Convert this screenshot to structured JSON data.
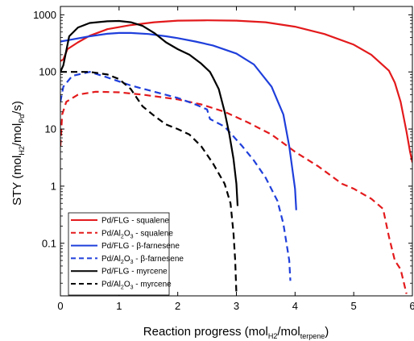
{
  "chart_data": {
    "type": "line",
    "title": "",
    "xlabel": {
      "main": "Reaction progress (mol",
      "sub1": "H2",
      "mid": "/mol",
      "sub2": "terpene",
      "end": ")"
    },
    "ylabel": {
      "main": "STY (mol",
      "sub1": "H2",
      "mid": "/mol",
      "sub2": "Pd",
      "end": "/s)"
    },
    "x_scale": "linear",
    "y_scale": "log",
    "xlim": [
      0,
      6
    ],
    "ylim": [
      0.012,
      1400
    ],
    "x_ticks": [
      0,
      1,
      2,
      3,
      4,
      5,
      6
    ],
    "x_tick_labels": [
      "0",
      "1",
      "2",
      "3",
      "4",
      "5",
      "6"
    ],
    "y_ticks": [
      0.1,
      1,
      10,
      100,
      1000
    ],
    "y_tick_labels": [
      "0.1",
      "1",
      "10",
      "100",
      "1000"
    ],
    "grid": false,
    "legend_position": "bottom-left",
    "series": [
      {
        "name": "Pd/FLG - squalene",
        "color": "#e31a1c",
        "dash": "solid",
        "points": [
          [
            0,
            155
          ],
          [
            0.05,
            165
          ],
          [
            0.12,
            250
          ],
          [
            0.3,
            330
          ],
          [
            0.5,
            430
          ],
          [
            0.8,
            560
          ],
          [
            1.2,
            660
          ],
          [
            1.6,
            740
          ],
          [
            2.0,
            790
          ],
          [
            2.5,
            800
          ],
          [
            3.0,
            790
          ],
          [
            3.5,
            740
          ],
          [
            4.0,
            620
          ],
          [
            4.5,
            460
          ],
          [
            5.0,
            300
          ],
          [
            5.3,
            200
          ],
          [
            5.5,
            130
          ],
          [
            5.6,
            105
          ],
          [
            5.7,
            65
          ],
          [
            5.8,
            30
          ],
          [
            5.9,
            9
          ],
          [
            5.96,
            4
          ],
          [
            6.0,
            2.6
          ]
        ]
      },
      {
        "name": "Pd/Al2O3 - squalene",
        "color": "#e31a1c",
        "dash": "dashed",
        "points": [
          [
            0,
            5
          ],
          [
            0.03,
            18
          ],
          [
            0.1,
            30
          ],
          [
            0.3,
            40
          ],
          [
            0.6,
            45
          ],
          [
            1.0,
            44
          ],
          [
            1.4,
            40
          ],
          [
            2.0,
            33
          ],
          [
            2.4,
            27
          ],
          [
            2.8,
            20
          ],
          [
            3.2,
            13
          ],
          [
            3.6,
            8
          ],
          [
            4.0,
            4
          ],
          [
            4.4,
            2.2
          ],
          [
            4.8,
            1.1
          ],
          [
            5.0,
            0.9
          ],
          [
            5.3,
            0.6
          ],
          [
            5.5,
            0.4
          ],
          [
            5.6,
            0.13
          ],
          [
            5.7,
            0.05
          ],
          [
            5.8,
            0.035
          ],
          [
            5.9,
            0.013
          ]
        ]
      },
      {
        "name": "Pd/FLG - β-farnesene",
        "color": "#1f3fdb",
        "dash": "solid",
        "points": [
          [
            0,
            340
          ],
          [
            0.2,
            370
          ],
          [
            0.5,
            420
          ],
          [
            0.8,
            465
          ],
          [
            1.0,
            480
          ],
          [
            1.2,
            480
          ],
          [
            1.5,
            460
          ],
          [
            1.8,
            420
          ],
          [
            2.0,
            390
          ],
          [
            2.3,
            340
          ],
          [
            2.6,
            290
          ],
          [
            3.0,
            210
          ],
          [
            3.3,
            135
          ],
          [
            3.6,
            55
          ],
          [
            3.8,
            18
          ],
          [
            3.9,
            5
          ],
          [
            4.0,
            0.9
          ],
          [
            4.02,
            0.38
          ]
        ]
      },
      {
        "name": "Pd/Al2O3 - β-farnesene",
        "color": "#1f3fdb",
        "dash": "dashed",
        "points": [
          [
            0,
            30
          ],
          [
            0.05,
            55
          ],
          [
            0.2,
            85
          ],
          [
            0.5,
            100
          ],
          [
            0.8,
            80
          ],
          [
            1.2,
            58
          ],
          [
            1.6,
            45
          ],
          [
            2.0,
            35
          ],
          [
            2.3,
            27
          ],
          [
            2.5,
            22
          ],
          [
            2.55,
            15
          ],
          [
            2.8,
            11
          ],
          [
            3.1,
            5
          ],
          [
            3.3,
            2.8
          ],
          [
            3.5,
            1.4
          ],
          [
            3.7,
            0.55
          ],
          [
            3.8,
            0.22
          ],
          [
            3.9,
            0.05
          ],
          [
            3.92,
            0.022
          ]
        ]
      },
      {
        "name": "Pd/FLG - myrcene",
        "color": "#000000",
        "dash": "solid",
        "points": [
          [
            0,
            100
          ],
          [
            0.05,
            130
          ],
          [
            0.15,
            420
          ],
          [
            0.3,
            600
          ],
          [
            0.5,
            720
          ],
          [
            0.8,
            770
          ],
          [
            1.0,
            780
          ],
          [
            1.2,
            740
          ],
          [
            1.4,
            640
          ],
          [
            1.6,
            480
          ],
          [
            1.8,
            330
          ],
          [
            2.0,
            250
          ],
          [
            2.2,
            200
          ],
          [
            2.4,
            140
          ],
          [
            2.55,
            100
          ],
          [
            2.6,
            80
          ],
          [
            2.7,
            50
          ],
          [
            2.8,
            20
          ],
          [
            2.88,
            8
          ],
          [
            2.95,
            3
          ],
          [
            3.0,
            1.1
          ],
          [
            3.02,
            0.45
          ]
        ]
      },
      {
        "name": "Pd/Al2O3 - myrcene",
        "color": "#000000",
        "dash": "dashed",
        "points": [
          [
            0,
            100
          ],
          [
            0.2,
            100
          ],
          [
            0.5,
            100
          ],
          [
            0.8,
            90
          ],
          [
            1.0,
            75
          ],
          [
            1.2,
            50
          ],
          [
            1.4,
            25
          ],
          [
            1.6,
            17
          ],
          [
            1.8,
            12
          ],
          [
            2.0,
            10
          ],
          [
            2.2,
            8
          ],
          [
            2.4,
            5
          ],
          [
            2.6,
            2.5
          ],
          [
            2.8,
            1.1
          ],
          [
            2.9,
            0.5
          ],
          [
            2.95,
            0.15
          ],
          [
            2.98,
            0.05
          ],
          [
            3.0,
            0.013
          ]
        ]
      }
    ],
    "legend": [
      {
        "pre": "Pd/FLG - squalene",
        "sub": "",
        "post": ""
      },
      {
        "pre": "Pd/Al",
        "sub": "2",
        "mid": "O",
        "sub2": "3",
        "post": " - squalene"
      },
      {
        "pre": "Pd/FLG - β-farnesene",
        "sub": "",
        "post": ""
      },
      {
        "pre": "Pd/Al",
        "sub": "2",
        "mid": "O",
        "sub2": "3",
        "post": " - β-farnesene"
      },
      {
        "pre": "Pd/FLG - myrcene",
        "sub": "",
        "post": ""
      },
      {
        "pre": "Pd/Al",
        "sub": "2",
        "mid": "O",
        "sub2": "3",
        "post": " - myrcene"
      }
    ]
  }
}
